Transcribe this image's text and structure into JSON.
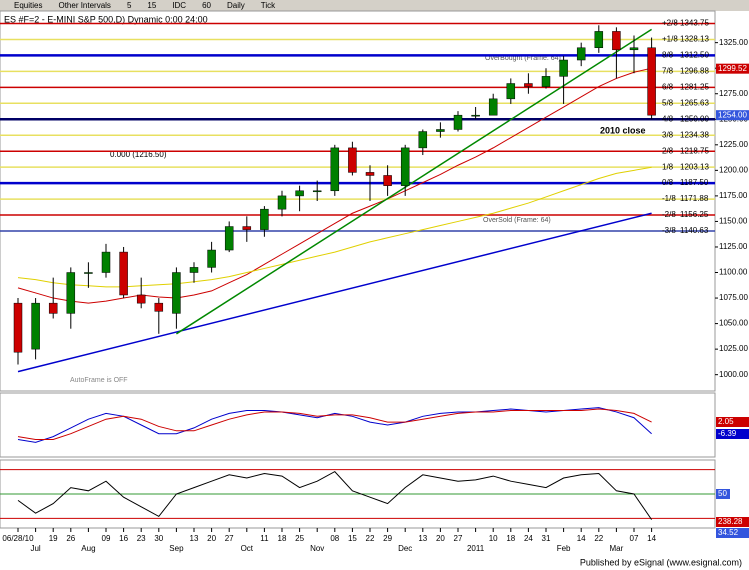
{
  "toolbar": {
    "items": [
      "Equities",
      "Other Intervals",
      "5",
      "15",
      "IDC",
      "60",
      "Daily",
      "Tick"
    ]
  },
  "footer": "Published by eSignal (www.esignal.com)",
  "chart_data": {
    "type": "candlestick",
    "title": "ES #F=2 - E-MINI S&P 500,D) Dynamic 0:00 24:00",
    "categories": [
      "06/28/10",
      "Jul",
      "19",
      "26",
      "Aug",
      "09",
      "16",
      "23",
      "30",
      "Sep",
      "13",
      "20",
      "27",
      "Oct",
      "11",
      "18",
      "25",
      "Nov",
      "08",
      "15",
      "22",
      "29",
      "Dec",
      "13",
      "20",
      "27",
      "2011",
      "10",
      "18",
      "24",
      "31",
      "Feb",
      "14",
      "22",
      "Mar",
      "07",
      "14"
    ],
    "open": [
      1070,
      1025,
      1070,
      1060,
      1100,
      1100,
      1120,
      1078,
      1070,
      1060,
      1100,
      1105,
      1122,
      1145,
      1142,
      1162,
      1175,
      1180,
      1180,
      1222,
      1198,
      1195,
      1185,
      1222,
      1238,
      1240,
      1254,
      1254,
      1270,
      1285,
      1282,
      1292,
      1308,
      1320,
      1336,
      1318,
      1320
    ],
    "high": [
      1075,
      1075,
      1095,
      1105,
      1110,
      1128,
      1125,
      1095,
      1075,
      1105,
      1110,
      1130,
      1150,
      1155,
      1165,
      1180,
      1185,
      1190,
      1225,
      1228,
      1205,
      1205,
      1225,
      1240,
      1247,
      1258,
      1262,
      1275,
      1290,
      1295,
      1300,
      1312,
      1325,
      1342,
      1340,
      1332,
      1330
    ],
    "low": [
      1010,
      1015,
      1055,
      1045,
      1085,
      1095,
      1075,
      1065,
      1040,
      1045,
      1090,
      1100,
      1120,
      1130,
      1135,
      1155,
      1160,
      1170,
      1175,
      1195,
      1170,
      1175,
      1175,
      1215,
      1232,
      1238,
      1250,
      1255,
      1265,
      1275,
      1280,
      1265,
      1302,
      1315,
      1290,
      1295,
      1250
    ],
    "close": [
      1022,
      1070,
      1060,
      1100,
      1100,
      1120,
      1078,
      1070,
      1062,
      1100,
      1105,
      1122,
      1145,
      1142,
      1162,
      1175,
      1180,
      1180,
      1222,
      1198,
      1195,
      1185,
      1222,
      1238,
      1240,
      1254,
      1254,
      1270,
      1285,
      1282,
      1292,
      1308,
      1320,
      1336,
      1318,
      1320,
      1254
    ],
    "up_color": "#008000",
    "down_color": "#cc0000",
    "ylim": [
      985,
      1355
    ],
    "yticks": [
      {
        "value": 1000,
        "label": "1000.00"
      },
      {
        "value": 1025,
        "label": "1025.00"
      },
      {
        "value": 1050,
        "label": "1050.00"
      },
      {
        "value": 1075,
        "label": "1075.00"
      },
      {
        "value": 1100,
        "label": "1100.00"
      },
      {
        "value": 1125,
        "label": "1125.00"
      },
      {
        "value": 1150,
        "label": "1150.00"
      },
      {
        "value": 1175,
        "label": "1175.00"
      },
      {
        "value": 1200,
        "label": "1200.00"
      },
      {
        "value": 1225,
        "label": "1225.00"
      },
      {
        "value": 1250,
        "label": "1250.00"
      },
      {
        "value": 1275,
        "label": "1275.00"
      },
      {
        "value": 1300,
        "label": "1300.00"
      },
      {
        "value": 1325,
        "label": "1325.00"
      }
    ],
    "levels": [
      {
        "name": "+2/8",
        "value": 1343.75,
        "label": "1343.75",
        "color": "#cc0000"
      },
      {
        "name": "+1/8",
        "value": 1328.13,
        "label": "1328.13",
        "color": "#e8e060"
      },
      {
        "name": "8/8",
        "value": 1312.5,
        "label": "1312.50",
        "color": "#0000cc"
      },
      {
        "name": "7/8",
        "value": 1296.88,
        "label": "1296.88",
        "color": "#e8e060"
      },
      {
        "name": "6/8",
        "value": 1281.25,
        "label": "1281.25",
        "color": "#cc0000"
      },
      {
        "name": "5/8",
        "value": 1265.63,
        "label": "1265.63",
        "color": "#e8e060"
      },
      {
        "name": "4/8",
        "value": 1250,
        "label": "1250.00",
        "color": "#000066"
      },
      {
        "name": "3/8",
        "value": 1234.38,
        "label": "1234.38",
        "color": "#e8e060"
      },
      {
        "name": "2/8",
        "value": 1218.75,
        "label": "1218.75",
        "color": "#cc0000"
      },
      {
        "name": "1/8",
        "value": 1203.13,
        "label": "1203.13",
        "color": "#e8e060"
      },
      {
        "name": "0/8",
        "value": 1187.5,
        "label": "1187.50",
        "color": "#0000cc"
      },
      {
        "name": "-1/8",
        "value": 1171.88,
        "label": "1171.88",
        "color": "#e8e060"
      },
      {
        "name": "-2/8",
        "value": 1156.25,
        "label": "1156.25",
        "color": "#cc0000"
      },
      {
        "name": "-3/8",
        "value": 1140.63,
        "label": "1140.63",
        "color": "#3344aa"
      }
    ],
    "moving_averages": [
      {
        "color": "#cc0000",
        "values": [
          1085,
          1080,
          1075,
          1072,
          1070,
          1072,
          1075,
          1078,
          1076,
          1075,
          1078,
          1082,
          1090,
          1098,
          1108,
          1118,
          1128,
          1138,
          1148,
          1158,
          1165,
          1172,
          1180,
          1188,
          1196,
          1205,
          1213,
          1222,
          1232,
          1242,
          1252,
          1262,
          1272,
          1282,
          1290,
          1296,
          1300
        ]
      },
      {
        "color": "#e0d000",
        "values": [
          1095,
          1093,
          1090,
          1088,
          1087,
          1086,
          1086,
          1087,
          1088,
          1089,
          1091,
          1093,
          1096,
          1100,
          1104,
          1108,
          1112,
          1116,
          1120,
          1125,
          1130,
          1134,
          1138,
          1142,
          1146,
          1150,
          1154,
          1158,
          1163,
          1168,
          1174,
          1180,
          1186,
          1192,
          1197,
          1200,
          1203
        ]
      }
    ],
    "trendlines": [
      {
        "color": "#0000cc",
        "start": [
          0,
          1003
        ],
        "end": [
          36,
          1158
        ]
      },
      {
        "color": "#008800",
        "start": [
          9,
          1040
        ],
        "end": [
          36,
          1338
        ]
      }
    ],
    "annotations": [
      "2010 close",
      "0.000 (1216.50)",
      "OverBought (Frame: 64)",
      "OverSold (Frame: 64)",
      "AutoFrame is OFF"
    ],
    "price_tags": [
      {
        "value": 1299.52,
        "label": "1299.52",
        "color": "#cc0000"
      },
      {
        "value": 1254,
        "label": "1254.00",
        "color": "#3355dd"
      }
    ],
    "macd": {
      "ylim": [
        -20,
        20
      ],
      "series": [
        {
          "color": "#0000cc",
          "values": [
            -10,
            -12,
            -8,
            -2,
            4,
            8,
            6,
            0,
            -6,
            -6,
            -2,
            4,
            8,
            10,
            10,
            9,
            7,
            5,
            8,
            6,
            2,
            0,
            2,
            6,
            8,
            9,
            9,
            10,
            11,
            10,
            9,
            10,
            11,
            12,
            9,
            5,
            -6
          ]
        },
        {
          "color": "#cc0000",
          "values": [
            -8,
            -10,
            -10,
            -6,
            -1,
            4,
            6,
            4,
            -1,
            -4,
            -4,
            0,
            4,
            7,
            9,
            9,
            8,
            6,
            7,
            7,
            5,
            2,
            2,
            4,
            6,
            8,
            9,
            9,
            10,
            10,
            10,
            10,
            10,
            11,
            10,
            8,
            2
          ]
        }
      ],
      "tags": [
        {
          "label": "2.05",
          "color": "#cc0000"
        },
        {
          "label": "-6.39",
          "color": "#0000cc"
        }
      ]
    },
    "oscillator": {
      "ylim": [
        0,
        100
      ],
      "yticks": [
        50
      ],
      "levels": [
        88,
        12
      ],
      "values": [
        40,
        20,
        35,
        60,
        55,
        70,
        45,
        30,
        15,
        50,
        60,
        70,
        80,
        75,
        82,
        78,
        60,
        70,
        85,
        55,
        45,
        35,
        60,
        80,
        75,
        70,
        72,
        78,
        70,
        65,
        60,
        75,
        80,
        82,
        55,
        50,
        10
      ],
      "tags": [
        {
          "label": "238.28",
          "color": "#cc0000"
        },
        {
          "label": "34.52",
          "color": "#3355dd"
        }
      ]
    }
  }
}
